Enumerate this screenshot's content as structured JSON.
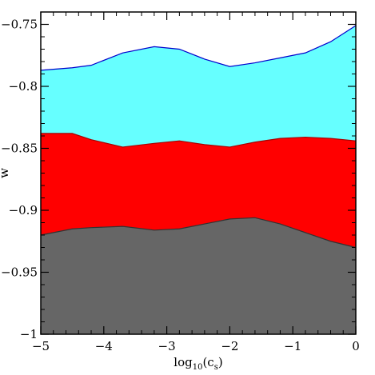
{
  "chart_data": {
    "type": "area",
    "xlabel": "log",
    "xlabel_sub": "10",
    "xlabel_arg": "(c",
    "xlabel_arg_sub": "s",
    "xlabel_close": ")",
    "ylabel": "w",
    "xlim": [
      -5,
      0
    ],
    "ylim": [
      -1,
      -0.74
    ],
    "xticks": [
      -5,
      -4,
      -3,
      -2,
      -1,
      0
    ],
    "xtick_labels": [
      "−5",
      "−4",
      "−3",
      "−2",
      "−1",
      "0"
    ],
    "yticks": [
      -1,
      -0.95,
      -0.9,
      -0.85,
      -0.8,
      -0.75
    ],
    "ytick_labels": [
      "−1",
      "−0.95",
      "−0.9",
      "−0.85",
      "−0.8",
      "−0.75"
    ],
    "grid": false,
    "series": [
      {
        "color": "#66ffff",
        "edge_color": "#0000cc",
        "x": [
          -5,
          -4.5,
          -4.2,
          -3.7,
          -3.2,
          -2.8,
          -2.4,
          -2,
          -1.6,
          -1.2,
          -0.8,
          -0.4,
          0
        ],
        "y": [
          -0.787,
          -0.785,
          -0.783,
          -0.773,
          -0.768,
          -0.77,
          -0.778,
          -0.784,
          -0.781,
          -0.777,
          -0.773,
          -0.764,
          -0.751
        ]
      },
      {
        "color": "#ff0000",
        "edge_color": "#aa0000",
        "x": [
          -5,
          -4.5,
          -4.2,
          -3.7,
          -3.2,
          -2.8,
          -2.4,
          -2,
          -1.6,
          -1.2,
          -0.8,
          -0.4,
          0
        ],
        "y": [
          -0.838,
          -0.838,
          -0.843,
          -0.849,
          -0.846,
          -0.844,
          -0.847,
          -0.849,
          -0.845,
          -0.842,
          -0.841,
          -0.842,
          -0.844
        ]
      },
      {
        "color": "#666666",
        "edge_color": "#333333",
        "x": [
          -5,
          -4.5,
          -4.2,
          -3.7,
          -3.2,
          -2.8,
          -2.4,
          -2,
          -1.6,
          -1.2,
          -0.8,
          -0.4,
          0
        ],
        "y": [
          -0.92,
          -0.915,
          -0.914,
          -0.913,
          -0.916,
          -0.915,
          -0.911,
          -0.907,
          -0.906,
          -0.911,
          -0.918,
          -0.925,
          -0.93
        ]
      }
    ]
  }
}
